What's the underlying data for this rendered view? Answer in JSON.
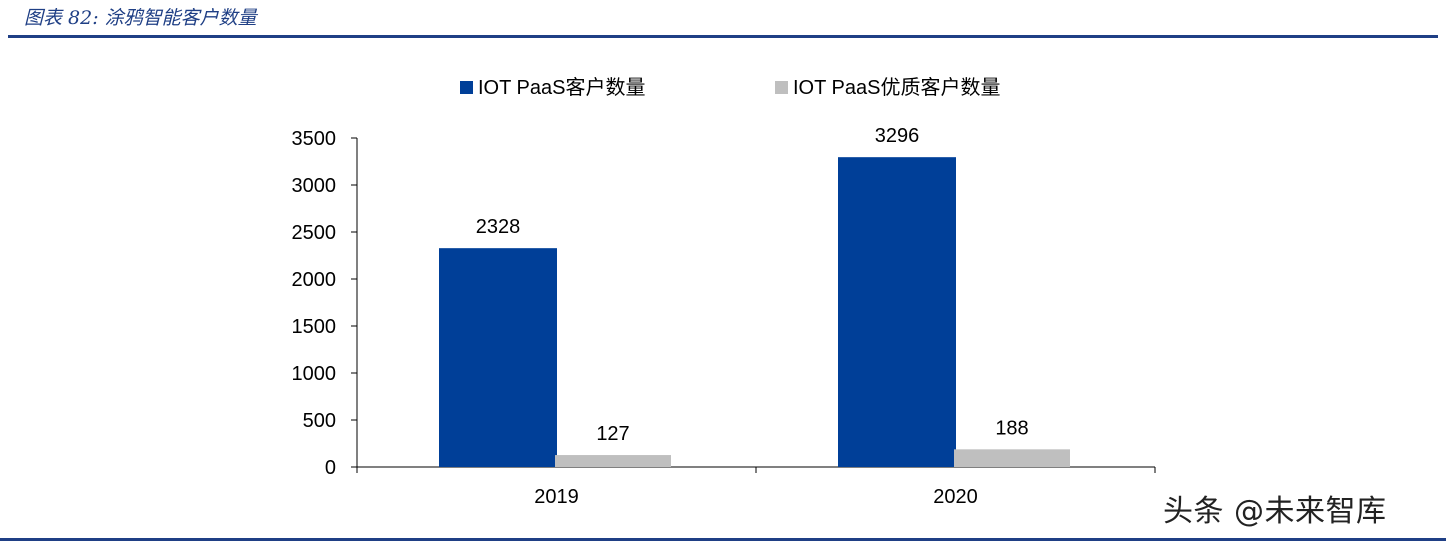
{
  "header": {
    "title": "图表 82: 涂鸦智能客户数量"
  },
  "watermark": {
    "text": "头条 @未来智库"
  },
  "chart_data": {
    "type": "bar",
    "title": "图表 82: 涂鸦智能客户数量",
    "categories": [
      "2019",
      "2020"
    ],
    "series": [
      {
        "name": "IOT PaaS客户数量",
        "values": [
          2328,
          3296
        ],
        "color": "#003f98"
      },
      {
        "name": "IOT PaaS优质客户数量",
        "values": [
          127,
          188
        ],
        "color": "#bfbfbf"
      }
    ],
    "yticks": [
      "0",
      "500",
      "1000",
      "1500",
      "2000",
      "2500",
      "3000",
      "3500"
    ],
    "ylim": [
      0,
      3500
    ],
    "xlabel": "",
    "ylabel": "",
    "grid": false,
    "legend": "top-center"
  }
}
